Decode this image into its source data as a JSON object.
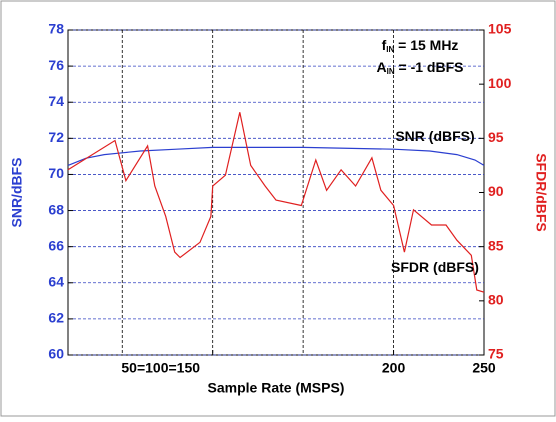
{
  "chart_data": {
    "type": "line",
    "xlabel": "Sample Rate (MSPS)",
    "ylabel": "SNR/dBFS",
    "y2label": "SFDR/dBFS",
    "annotations": [
      {
        "text": "f",
        "sub": "IN",
        "rest": " = 15 MHz"
      },
      {
        "text": "A",
        "sub": "IN",
        "rest": " = -1 dBFS"
      },
      {
        "text": "SNR (dBFS)"
      },
      {
        "text": "SFDR (dBFS)"
      }
    ],
    "xlim": [
      20,
      250
    ],
    "xgrid": [
      50,
      100,
      150,
      200
    ],
    "xticks": [
      {
        "value": 100,
        "label": "50=100=150"
      },
      200,
      250
    ],
    "ylim": [
      60,
      78
    ],
    "yticks": [
      60,
      62,
      64,
      66,
      68,
      70,
      72,
      74,
      76,
      78
    ],
    "y2lim": [
      75,
      105
    ],
    "y2ticks": [
      75,
      80,
      85,
      90,
      95,
      100,
      105
    ],
    "grid": true,
    "series": [
      {
        "name": "SNR (dBFS)",
        "color": "#2b3fd0",
        "x": [
          20,
          30,
          40,
          50,
          60,
          80,
          100,
          150,
          200,
          220,
          235,
          245,
          250
        ],
        "values": [
          70.5,
          70.9,
          71.1,
          71.2,
          71.3,
          71.4,
          71.5,
          71.5,
          71.4,
          71.3,
          71.1,
          70.8,
          70.5
        ]
      },
      {
        "name": "SFDR (dBFS)",
        "color": "#e02020",
        "axis": "y2",
        "x": [
          20,
          46,
          52,
          64,
          68,
          74,
          79,
          82,
          93,
          99,
          100,
          107,
          115,
          121,
          129,
          135,
          149,
          157,
          163,
          171,
          179,
          188,
          193,
          200,
          206,
          211,
          221,
          229,
          235,
          243,
          246,
          250
        ],
        "values": [
          92.1,
          94.8,
          91.1,
          94.3,
          90.6,
          87.8,
          84.5,
          84,
          85.4,
          87.8,
          90.6,
          91.6,
          97.4,
          92.5,
          90.6,
          89.3,
          88.8,
          93,
          90.2,
          92.1,
          90.6,
          93.2,
          90.2,
          88.8,
          84.5,
          88.4,
          87,
          87,
          85.6,
          84.2,
          81,
          80.8
        ]
      }
    ]
  }
}
